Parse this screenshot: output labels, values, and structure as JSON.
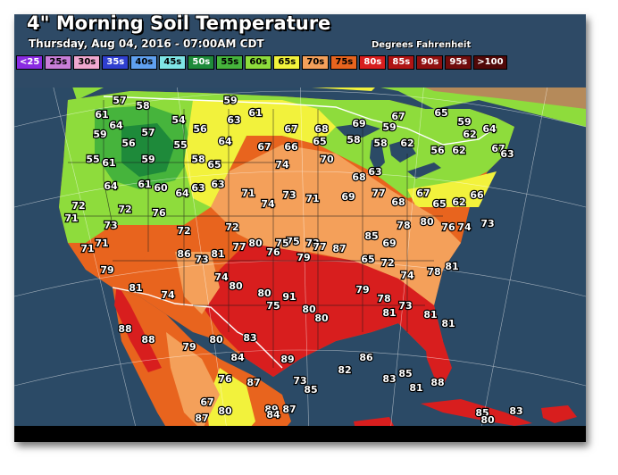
{
  "map": {
    "title": "4\" Morning Soil Temperature",
    "subtitle": "Thursday, Aug 04, 2016 - 07:00AM CDT",
    "units": "Degrees Fahrenheit",
    "legend": [
      {
        "label": "<25",
        "color": "#8a2be2",
        "text": "#ffffff"
      },
      {
        "label": "25s",
        "color": "#c87ed8",
        "text": "#000000"
      },
      {
        "label": "30s",
        "color": "#f0a8d0",
        "text": "#000000"
      },
      {
        "label": "35s",
        "color": "#2f3fd0",
        "text": "#ffffff"
      },
      {
        "label": "40s",
        "color": "#5fa0f0",
        "text": "#000000"
      },
      {
        "label": "45s",
        "color": "#7fe6e6",
        "text": "#000000"
      },
      {
        "label": "50s",
        "color": "#1e8a3a",
        "text": "#ffffff"
      },
      {
        "label": "55s",
        "color": "#46b43c",
        "text": "#000000"
      },
      {
        "label": "60s",
        "color": "#8edc3c",
        "text": "#000000"
      },
      {
        "label": "65s",
        "color": "#f2f23c",
        "text": "#000000"
      },
      {
        "label": "70s",
        "color": "#f4a05a",
        "text": "#000000"
      },
      {
        "label": "75s",
        "color": "#e8641e",
        "text": "#000000"
      },
      {
        "label": "80s",
        "color": "#d81e1e",
        "text": "#ffffff"
      },
      {
        "label": "85s",
        "color": "#b01414",
        "text": "#ffffff"
      },
      {
        "label": "90s",
        "color": "#901010",
        "text": "#ffffff"
      },
      {
        "label": "95s",
        "color": "#700c0c",
        "text": "#ffffff"
      },
      {
        "label": ">100",
        "color": "#500808",
        "text": "#ffffff"
      }
    ],
    "stations": [
      {
        "v": "57"
      },
      {
        "v": "58"
      },
      {
        "v": "59"
      },
      {
        "v": "61"
      },
      {
        "v": "61"
      },
      {
        "v": "64"
      },
      {
        "v": "54"
      },
      {
        "v": "56"
      },
      {
        "v": "63"
      },
      {
        "v": "67"
      },
      {
        "v": "57"
      },
      {
        "v": "68"
      },
      {
        "v": "69"
      },
      {
        "v": "59"
      },
      {
        "v": "67"
      },
      {
        "v": "65"
      },
      {
        "v": "59"
      },
      {
        "v": "62"
      },
      {
        "v": "64"
      },
      {
        "v": "59"
      },
      {
        "v": "56"
      },
      {
        "v": "55"
      },
      {
        "v": "64"
      },
      {
        "v": "67"
      },
      {
        "v": "66"
      },
      {
        "v": "65"
      },
      {
        "v": "58"
      },
      {
        "v": "58"
      },
      {
        "v": "62"
      },
      {
        "v": "56"
      },
      {
        "v": "62"
      },
      {
        "v": "67"
      },
      {
        "v": "63"
      },
      {
        "v": "55"
      },
      {
        "v": "61"
      },
      {
        "v": "59"
      },
      {
        "v": "58"
      },
      {
        "v": "65"
      },
      {
        "v": "74"
      },
      {
        "v": "70"
      },
      {
        "v": "68"
      },
      {
        "v": "63"
      },
      {
        "v": "64"
      },
      {
        "v": "61"
      },
      {
        "v": "60"
      },
      {
        "v": "64"
      },
      {
        "v": "63"
      },
      {
        "v": "63"
      },
      {
        "v": "71"
      },
      {
        "v": "74"
      },
      {
        "v": "73"
      },
      {
        "v": "71"
      },
      {
        "v": "69"
      },
      {
        "v": "77"
      },
      {
        "v": "68"
      },
      {
        "v": "67"
      },
      {
        "v": "65"
      },
      {
        "v": "62"
      },
      {
        "v": "66"
      },
      {
        "v": "72"
      },
      {
        "v": "71"
      },
      {
        "v": "72"
      },
      {
        "v": "73"
      },
      {
        "v": "76"
      },
      {
        "v": "72"
      },
      {
        "v": "72"
      },
      {
        "v": "80"
      },
      {
        "v": "76"
      },
      {
        "v": "75"
      },
      {
        "v": "73"
      },
      {
        "v": "85"
      },
      {
        "v": "69"
      },
      {
        "v": "78"
      },
      {
        "v": "80"
      },
      {
        "v": "76"
      },
      {
        "v": "74"
      },
      {
        "v": "73"
      },
      {
        "v": "71"
      },
      {
        "v": "71"
      },
      {
        "v": "86"
      },
      {
        "v": "73"
      },
      {
        "v": "81"
      },
      {
        "v": "77"
      },
      {
        "v": "75"
      },
      {
        "v": "79"
      },
      {
        "v": "77"
      },
      {
        "v": "87"
      },
      {
        "v": "65"
      },
      {
        "v": "72"
      },
      {
        "v": "74"
      },
      {
        "v": "78"
      },
      {
        "v": "81"
      },
      {
        "v": "79"
      },
      {
        "v": "81"
      },
      {
        "v": "74"
      },
      {
        "v": "74"
      },
      {
        "v": "80"
      },
      {
        "v": "80"
      },
      {
        "v": "75"
      },
      {
        "v": "91"
      },
      {
        "v": "80"
      },
      {
        "v": "80"
      },
      {
        "v": "79"
      },
      {
        "v": "78"
      },
      {
        "v": "81"
      },
      {
        "v": "73"
      },
      {
        "v": "81"
      },
      {
        "v": "81"
      },
      {
        "v": "88"
      },
      {
        "v": "88"
      },
      {
        "v": "79"
      },
      {
        "v": "80"
      },
      {
        "v": "83"
      },
      {
        "v": "84"
      },
      {
        "v": "89"
      },
      {
        "v": "73"
      },
      {
        "v": "82"
      },
      {
        "v": "85"
      },
      {
        "v": "86"
      },
      {
        "v": "83"
      },
      {
        "v": "85"
      },
      {
        "v": "81"
      },
      {
        "v": "88"
      },
      {
        "v": "85"
      },
      {
        "v": "80"
      },
      {
        "v": "83"
      },
      {
        "v": "76"
      },
      {
        "v": "87"
      },
      {
        "v": "80"
      },
      {
        "v": "87"
      },
      {
        "v": "89"
      },
      {
        "v": "67"
      },
      {
        "v": "84"
      },
      {
        "v": "87"
      }
    ]
  }
}
